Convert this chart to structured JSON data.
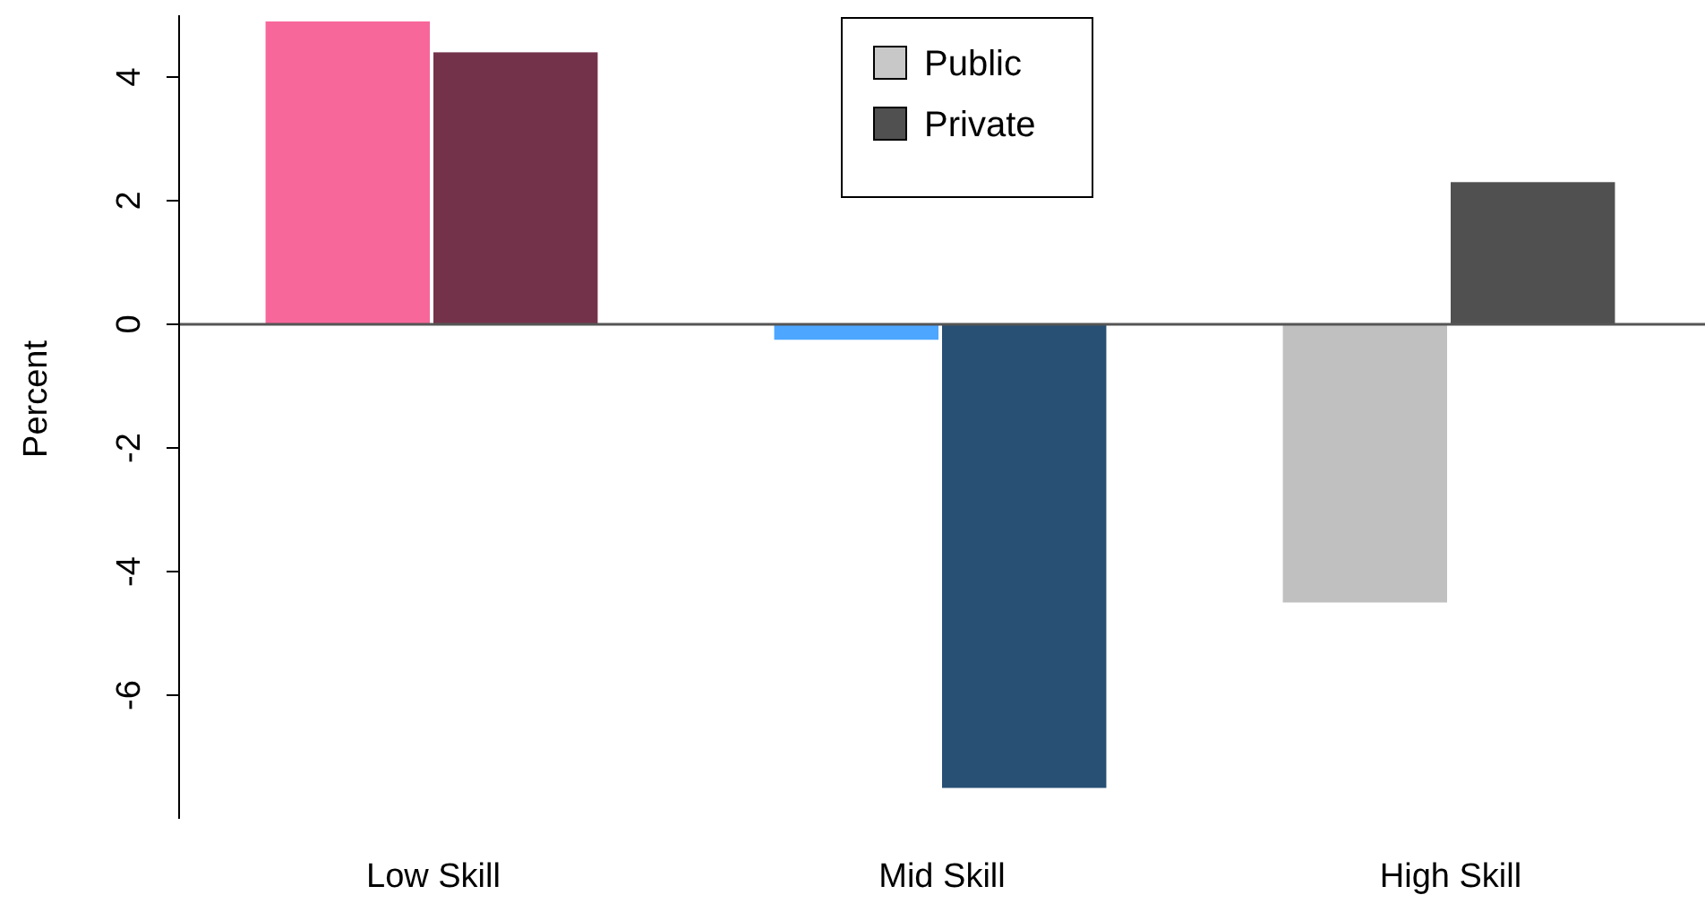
{
  "chart_data": {
    "type": "bar",
    "ylabel": "Percent",
    "categories": [
      "Low Skill",
      "Mid Skill",
      "High Skill"
    ],
    "series": [
      {
        "name": "Public",
        "color": "#c8c8c8",
        "colors": [
          "#f7679a",
          "#4da6ff",
          "#c0c0c0"
        ],
        "values": [
          4.9,
          -0.25,
          -4.5
        ]
      },
      {
        "name": "Private",
        "color": "#505050",
        "colors": [
          "#74324a",
          "#284f74",
          "#505050"
        ],
        "values": [
          4.4,
          -7.5,
          2.3
        ]
      }
    ],
    "ylim": [
      -8,
      5
    ],
    "yticks": [
      -6,
      -4,
      -2,
      0,
      2,
      4
    ],
    "ref_lines": [
      {
        "axis": "y",
        "value": 0
      }
    ],
    "legend": "top",
    "grid": false
  }
}
